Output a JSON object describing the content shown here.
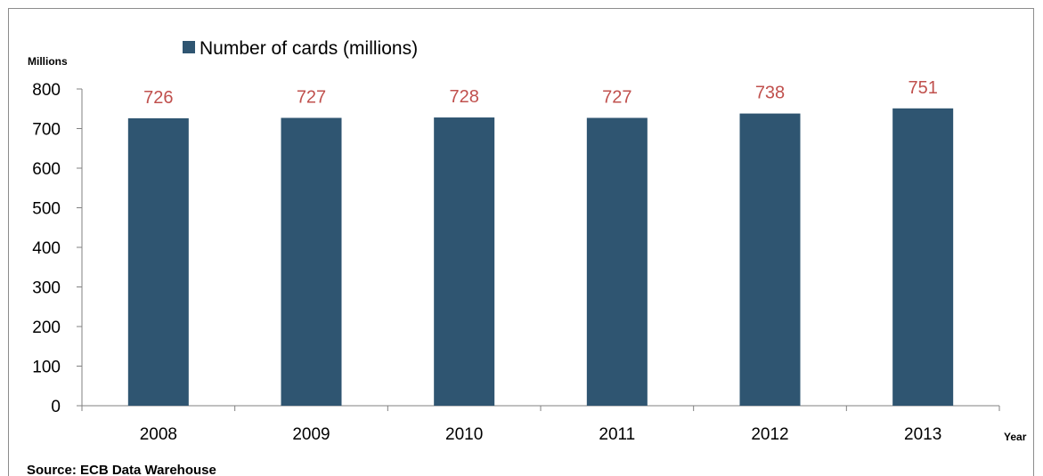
{
  "chart_data": {
    "type": "bar",
    "categories": [
      "2008",
      "2009",
      "2010",
      "2011",
      "2012",
      "2013"
    ],
    "series": [
      {
        "name": "Number of cards (millions)",
        "values": [
          726,
          727,
          728,
          727,
          738,
          751
        ]
      }
    ],
    "data_labels": [
      "726",
      "727",
      "728",
      "727",
      "738",
      "751"
    ],
    "ylabel": "Millions",
    "xlabel": "Year",
    "ylim": [
      0,
      800
    ],
    "yticks": [
      0,
      100,
      200,
      300,
      400,
      500,
      600,
      700,
      800
    ],
    "grid": false,
    "legend_position": "top-left",
    "source": "Source: ECB Data Warehouse",
    "colors": {
      "bar": "#2f5571",
      "data_label": "#c0504d",
      "axis": "#808080"
    }
  }
}
